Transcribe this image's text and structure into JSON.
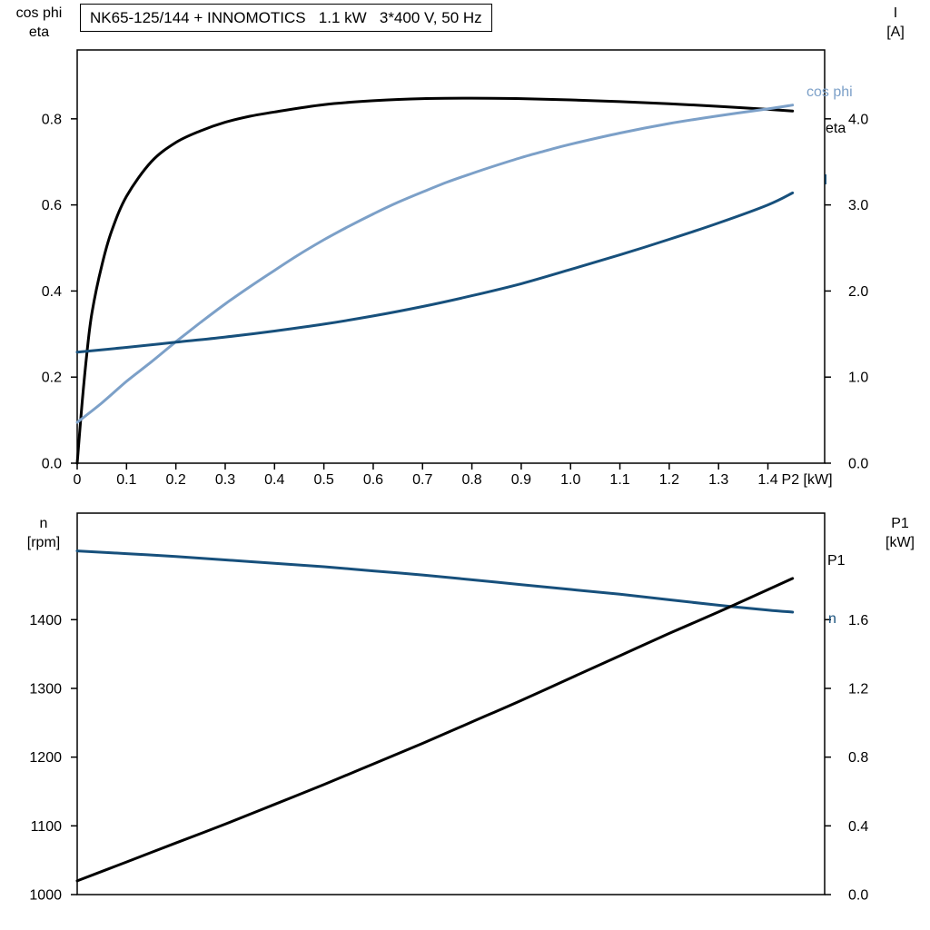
{
  "title": {
    "text": "NK65-125/144 + INNOMOTICS   1.1 kW   3*400 V, 50 Hz"
  },
  "colors": {
    "eta": "#000000",
    "cos_phi": "#7ca0c8",
    "current": "#17507c",
    "speed": "#17507c",
    "p1": "#000000",
    "axis": "#000000",
    "background": "#ffffff"
  },
  "chart_data": [
    {
      "type": "line",
      "title": "NK65-125/144 + INNOMOTICS   1.1 kW   3*400 V, 50 Hz",
      "x_axis": {
        "label": "P2 [kW]",
        "range": [
          0,
          1.515
        ],
        "tick_values": [
          0,
          0.1,
          0.2,
          0.3,
          0.4,
          0.5,
          0.6,
          0.7,
          0.8,
          0.9,
          1.0,
          1.1,
          1.2,
          1.3,
          1.4
        ],
        "tick_labels": [
          "0",
          "0.1",
          "0.2",
          "0.3",
          "0.4",
          "0.5",
          "0.6",
          "0.7",
          "0.8",
          "0.9",
          "1.0",
          "1.1",
          "1.2",
          "1.3",
          "1.4"
        ]
      },
      "left_axis": {
        "title_lines": [
          "cos phi",
          "eta"
        ],
        "range": [
          0,
          0.96
        ],
        "tick_values": [
          0,
          0.2,
          0.4,
          0.6,
          0.8
        ],
        "tick_labels": [
          "0.0",
          "0.2",
          "0.4",
          "0.6",
          "0.8"
        ]
      },
      "right_axis": {
        "title_lines": [
          "I",
          "[A]"
        ],
        "range": [
          0,
          4.8
        ],
        "tick_values": [
          0,
          1,
          2,
          3,
          4
        ],
        "tick_labels": [
          "0.0",
          "1.0",
          "2.0",
          "3.0",
          "4.0"
        ]
      },
      "grid": false,
      "series": [
        {
          "name": "eta",
          "axis": "left",
          "color": "#000000",
          "points": [
            [
              0,
              0
            ],
            [
              0.01,
              0.14
            ],
            [
              0.02,
              0.26
            ],
            [
              0.03,
              0.35
            ],
            [
              0.05,
              0.46
            ],
            [
              0.07,
              0.54
            ],
            [
              0.1,
              0.62
            ],
            [
              0.15,
              0.7
            ],
            [
              0.2,
              0.745
            ],
            [
              0.25,
              0.772
            ],
            [
              0.3,
              0.792
            ],
            [
              0.35,
              0.806
            ],
            [
              0.4,
              0.816
            ],
            [
              0.5,
              0.833
            ],
            [
              0.6,
              0.842
            ],
            [
              0.7,
              0.847
            ],
            [
              0.8,
              0.848
            ],
            [
              0.9,
              0.847
            ],
            [
              1.0,
              0.844
            ],
            [
              1.1,
              0.84
            ],
            [
              1.2,
              0.835
            ],
            [
              1.3,
              0.829
            ],
            [
              1.4,
              0.822
            ],
            [
              1.45,
              0.818
            ]
          ]
        },
        {
          "name": "cos phi",
          "axis": "left",
          "color": "#7ca0c8",
          "points": [
            [
              0,
              0.095
            ],
            [
              0.05,
              0.14
            ],
            [
              0.1,
              0.19
            ],
            [
              0.15,
              0.235
            ],
            [
              0.2,
              0.282
            ],
            [
              0.25,
              0.327
            ],
            [
              0.3,
              0.37
            ],
            [
              0.35,
              0.41
            ],
            [
              0.4,
              0.448
            ],
            [
              0.45,
              0.485
            ],
            [
              0.5,
              0.519
            ],
            [
              0.55,
              0.55
            ],
            [
              0.6,
              0.579
            ],
            [
              0.65,
              0.606
            ],
            [
              0.7,
              0.63
            ],
            [
              0.75,
              0.653
            ],
            [
              0.8,
              0.673
            ],
            [
              0.85,
              0.692
            ],
            [
              0.9,
              0.71
            ],
            [
              0.95,
              0.726
            ],
            [
              1.0,
              0.741
            ],
            [
              1.1,
              0.767
            ],
            [
              1.2,
              0.789
            ],
            [
              1.3,
              0.807
            ],
            [
              1.4,
              0.823
            ],
            [
              1.45,
              0.832
            ]
          ]
        },
        {
          "name": "I",
          "axis": "right",
          "color": "#17507c",
          "points": [
            [
              0,
              1.29
            ],
            [
              0.1,
              1.345
            ],
            [
              0.2,
              1.405
            ],
            [
              0.3,
              1.465
            ],
            [
              0.4,
              1.535
            ],
            [
              0.5,
              1.615
            ],
            [
              0.6,
              1.71
            ],
            [
              0.7,
              1.82
            ],
            [
              0.8,
              1.945
            ],
            [
              0.9,
              2.085
            ],
            [
              1.0,
              2.25
            ],
            [
              1.1,
              2.42
            ],
            [
              1.2,
              2.6
            ],
            [
              1.3,
              2.79
            ],
            [
              1.4,
              3.0
            ],
            [
              1.45,
              3.14
            ]
          ]
        }
      ],
      "curve_labels": [
        {
          "text": "cos phi",
          "color": "#7ca0c8"
        },
        {
          "text": "eta",
          "color": "#000000"
        },
        {
          "text": "I",
          "color": "#17507c"
        }
      ]
    },
    {
      "type": "line",
      "x_axis": {
        "label": "",
        "range": [
          0,
          1.515
        ],
        "tick_values": [],
        "tick_labels": []
      },
      "left_axis": {
        "title_lines": [
          "n",
          "[rpm]"
        ],
        "range": [
          1000,
          1555
        ],
        "tick_values": [
          1000,
          1100,
          1200,
          1300,
          1400
        ],
        "tick_labels": [
          "1000",
          "1100",
          "1200",
          "1300",
          "1400"
        ]
      },
      "right_axis": {
        "title_lines": [
          "P1",
          "[kW]"
        ],
        "range": [
          0,
          2.22
        ],
        "tick_values": [
          0,
          0.4,
          0.8,
          1.2,
          1.6
        ],
        "tick_labels": [
          "0.0",
          "0.4",
          "0.8",
          "1.2",
          "1.6"
        ]
      },
      "grid": false,
      "series": [
        {
          "name": "n",
          "axis": "left",
          "color": "#17507c",
          "points": [
            [
              0,
              1500
            ],
            [
              0.1,
              1496
            ],
            [
              0.2,
              1492
            ],
            [
              0.3,
              1487
            ],
            [
              0.4,
              1482
            ],
            [
              0.5,
              1477
            ],
            [
              0.6,
              1471
            ],
            [
              0.7,
              1465
            ],
            [
              0.8,
              1458
            ],
            [
              0.9,
              1451
            ],
            [
              1.0,
              1444
            ],
            [
              1.1,
              1437
            ],
            [
              1.2,
              1429
            ],
            [
              1.3,
              1421
            ],
            [
              1.4,
              1414
            ],
            [
              1.45,
              1411
            ]
          ]
        },
        {
          "name": "P1",
          "axis": "right",
          "color": "#000000",
          "points": [
            [
              0,
              0.08
            ],
            [
              0.1,
              0.19
            ],
            [
              0.2,
              0.3
            ],
            [
              0.3,
              0.41
            ],
            [
              0.4,
              0.525
            ],
            [
              0.5,
              0.64
            ],
            [
              0.6,
              0.76
            ],
            [
              0.7,
              0.88
            ],
            [
              0.8,
              1.005
            ],
            [
              0.9,
              1.13
            ],
            [
              1.0,
              1.26
            ],
            [
              1.1,
              1.39
            ],
            [
              1.2,
              1.52
            ],
            [
              1.3,
              1.645
            ],
            [
              1.4,
              1.775
            ],
            [
              1.45,
              1.84
            ]
          ]
        }
      ],
      "curve_labels": [
        {
          "text": "P1",
          "color": "#000000"
        },
        {
          "text": "n",
          "color": "#17507c"
        }
      ]
    }
  ]
}
